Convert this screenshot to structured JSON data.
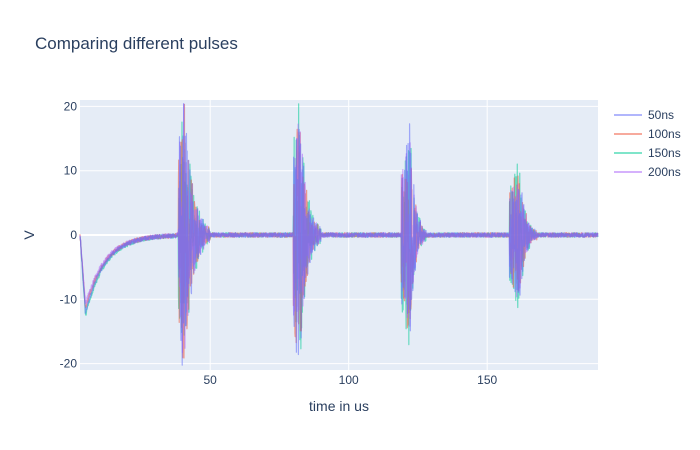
{
  "chart_data": {
    "type": "line",
    "title": "Comparing different pulses",
    "xlabel": "time in us",
    "ylabel": "V",
    "xlim": [
      3,
      190
    ],
    "ylim": [
      -21,
      21
    ],
    "x_ticks": [
      50,
      100,
      150
    ],
    "y_ticks": [
      20,
      10,
      0,
      -10,
      -20
    ],
    "grid": true,
    "legend_position": "top-right",
    "background": "#e5ecf6",
    "decay": {
      "start_x": 3,
      "min_value": -12,
      "min_x": 5,
      "tau": 7,
      "end_x": 38
    },
    "bursts": [
      {
        "x_start": 38.5,
        "x_peak": 40.5,
        "x_end": 50,
        "amplitude": 20
      },
      {
        "x_start": 80,
        "x_peak": 82,
        "x_end": 90,
        "amplitude": 20
      },
      {
        "x_start": 119,
        "x_peak": 122,
        "x_end": 128,
        "amplitude": 15
      },
      {
        "x_start": 158,
        "x_peak": 161.5,
        "x_end": 168,
        "amplitude": 10
      }
    ],
    "series": [
      {
        "name": "50ns",
        "color": "#636efa",
        "scale": 1.0
      },
      {
        "name": "100ns",
        "color": "#ef553b",
        "scale": 0.95
      },
      {
        "name": "150ns",
        "color": "#00cc96",
        "scale": 1.05
      },
      {
        "name": "200ns",
        "color": "#ab63fa",
        "scale": 0.9
      }
    ]
  }
}
